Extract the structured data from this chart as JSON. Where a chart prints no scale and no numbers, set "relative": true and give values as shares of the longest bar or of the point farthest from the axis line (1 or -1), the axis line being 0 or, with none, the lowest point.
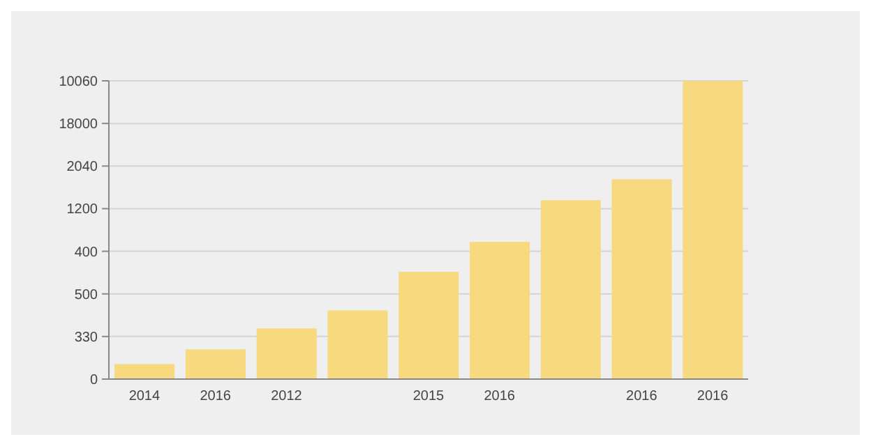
{
  "chart_data": {
    "type": "bar",
    "categories": [
      "2014",
      "2016",
      "2012",
      null,
      "2015",
      "2016",
      null,
      "2016",
      "2016"
    ],
    "values": [
      0.05,
      0.1,
      0.17,
      0.23,
      0.36,
      0.46,
      0.6,
      0.67,
      1
    ],
    "color": "#f7d97f",
    "relative": true,
    "annotations": [
      "0",
      "330",
      "500",
      "400",
      "1200",
      "2040",
      "18000",
      "10060"
    ],
    "grid": "y"
  }
}
